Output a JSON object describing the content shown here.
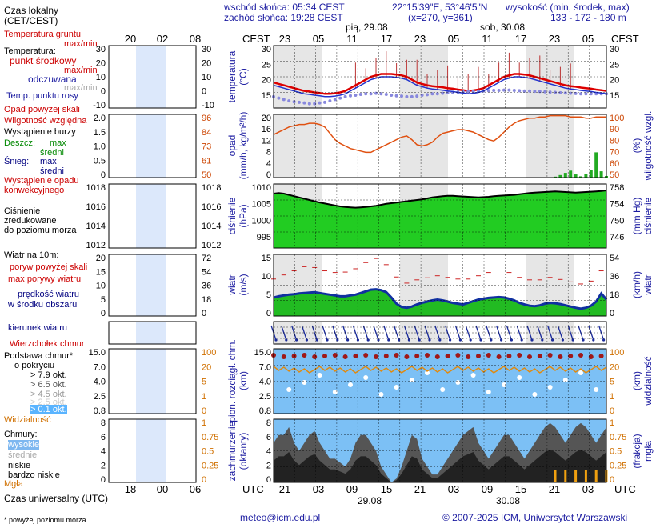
{
  "header": {
    "sunrise": "wschód słońca: 05:34 CEST",
    "sunset": "zachód słońca: 19:28 CEST",
    "coords": "22°15'39\"E, 53°46'5\"N",
    "grid": "(x=270, y=361)",
    "elevation_label": "wysokość (min, środek, max)",
    "elevation_values": "133 - 172 - 180 m"
  },
  "legend": {
    "local_time": "Czas lokalny",
    "local_time_sub": "(CET/CEST)",
    "ground_temp": "Temperatura gruntu",
    "ground_temp_sub": "max/min",
    "temperature": "Temperatura:",
    "mid_point": "punkt środkowy",
    "maxmin": "max/min",
    "felt": "odczuwana",
    "maxmin2": "max/min",
    "dew_point": "Temp. punktu rosy",
    "precip_above": "Opad powyżej skali",
    "humidity": "Wilgotność względna",
    "storm": "Wystąpienie burzy",
    "rain": "Deszcz:",
    "rain_max": "max",
    "rain_mid": "średni",
    "snow": "Śnieg:",
    "snow_max": "max",
    "snow_mid": "średni",
    "convective": "Wystąpienie opadu",
    "convective2": "konwekcyjnego",
    "pressure1": "Ciśnienie",
    "pressure2": "zredukowane",
    "pressure3": "do poziomu morza",
    "wind_title": "Wiatr na 10m:",
    "gusts_above": "poryw powyżej skali",
    "max_gusts": "max porywy wiatru",
    "wind_speed": "prędkość wiatru",
    "wind_speed2": "w środku obszaru",
    "wind_dir": "kierunek wiatru",
    "cloud_top": "Wierzchołek chmur",
    "cloud_base": "Podstawa chmur*",
    "cloud_base2": "o pokryciu",
    "okt_79": "> 7.9 okt.",
    "okt_65": "> 6.5 okt.",
    "okt_45": "> 4.5 okt.",
    "okt_25": "> 2.5 okt.",
    "okt_01": "> 0.1 okt.",
    "visibility": "Widzialność",
    "clouds": "Chmury:",
    "high": "wysokie",
    "medium": "średnie",
    "low": "niskie",
    "very_low": "bardzo niskie",
    "fog": "Mgła",
    "utc_label": "Czas uniwersalny (UTC)",
    "footnote": "* powyżej poziomu morza"
  },
  "legend_ticks": {
    "temp_left": [
      "30",
      "20",
      "10",
      "0",
      "-10"
    ],
    "temp_right": [
      "30",
      "20",
      "10",
      "0",
      "-10"
    ],
    "precip_left": [
      "2.0",
      "1.5",
      "1.0",
      "0.5",
      "0"
    ],
    "precip_right": [
      "96",
      "84",
      "73",
      "61",
      "50"
    ],
    "press_left": [
      "1018",
      "1016",
      "1014",
      "1012"
    ],
    "press_right": [
      "1018",
      "1016",
      "1014",
      "1012"
    ],
    "wind_left": [
      "20",
      "15",
      "10",
      "5",
      "0"
    ],
    "wind_right": [
      "72",
      "54",
      "36",
      "18",
      "0"
    ],
    "cloud_left": [
      "15.0",
      "7.0",
      "4.0",
      "2.5",
      "0.8"
    ],
    "cloud_right": [
      "100",
      "20",
      "5",
      "1",
      "0"
    ],
    "cover_left": [
      "8",
      "6",
      "4",
      "2",
      "0"
    ],
    "cover_right": [
      "1",
      "0.75",
      "0.5",
      "0.25",
      "0"
    ],
    "top_hours": [
      "20",
      "02",
      "08"
    ],
    "bottom_hours": [
      "18",
      "00",
      "06"
    ]
  },
  "main": {
    "cest": "CEST",
    "utc": "UTC",
    "day1": "pią, 29.08",
    "day2": "sob, 30.08",
    "date1": "29.08",
    "date2": "30.08",
    "top_hours": [
      "23",
      "05",
      "11",
      "17",
      "23",
      "05",
      "11",
      "17",
      "23",
      "05"
    ],
    "bottom_hours": [
      "21",
      "03",
      "09",
      "15",
      "21",
      "03",
      "09",
      "15",
      "21",
      "03"
    ],
    "temp_label1": "temperatura",
    "temp_label2": "(°C)",
    "precip_label1": "opad",
    "precip_label2": "(mm/h, kg/m²/h)",
    "humidity_label1": "wilgotność wzgl.",
    "humidity_label2": "(%)",
    "pressure_label1": "ciśnienie",
    "pressure_label2": "(hPa)",
    "pressure_label3": "ciśnienie",
    "pressure_label4": "(mm Hg)",
    "wind_label1": "wiatr",
    "wind_label2": "(m/s)",
    "wind_label3": "wiatr",
    "wind_label4": "(km/h)",
    "cloud_label1": "pion. rozciągł. chm.",
    "cloud_label2": "(km)",
    "vis_label1": "widzialność",
    "vis_label2": "(km)",
    "cover_label1": "zachmurzenie",
    "cover_label2": "(oktanty)",
    "fog_label1": "mgła",
    "fog_label2": "(frakcja)",
    "ticks": {
      "temp": [
        "30",
        "25",
        "20",
        "15"
      ],
      "precip": [
        "20",
        "16",
        "12",
        "8",
        "4",
        "0"
      ],
      "humidity": [
        "100",
        "90",
        "80",
        "70",
        "60",
        "50"
      ],
      "pressure": [
        "1010",
        "1005",
        "1000",
        "995"
      ],
      "pressure_mm": [
        "758",
        "754",
        "750",
        "746"
      ],
      "wind": [
        "15",
        "10",
        "5",
        "0"
      ],
      "wind_kmh": [
        "54",
        "36",
        "18",
        "0"
      ],
      "cloud": [
        "15.0",
        "7.0",
        "4.0",
        "2.5",
        "0.8"
      ],
      "vis": [
        "100",
        "20",
        "5",
        "1",
        "0"
      ],
      "cover": [
        "8",
        "6",
        "4",
        "2",
        "0"
      ],
      "fog": [
        "1",
        "0.75",
        "0.5",
        "0.25",
        "0"
      ]
    }
  },
  "footer": {
    "email": "meteo@icm.edu.pl",
    "copyright": "© 2007-2025 ICM, Uniwersytet Warszawski"
  },
  "chart_data": {
    "type": "line",
    "title": "",
    "time_step_hours": 1,
    "start_utc": "2025-08-28T18:00",
    "series": [
      {
        "name": "temperatura",
        "unit": "°C",
        "values": [
          20,
          19.5,
          19,
          18.5,
          18,
          17.5,
          17,
          16.8,
          16.5,
          16.3,
          16,
          16,
          16.2,
          16.5,
          17,
          18,
          19,
          20,
          21,
          22,
          22.5,
          23,
          23,
          23,
          22.8,
          22.5,
          22,
          21,
          20,
          19.5,
          19,
          18.7,
          18.5,
          18.3,
          18,
          17.8,
          17.5,
          17.3,
          17,
          17.2,
          17.5,
          18,
          19,
          20,
          21,
          22,
          22.5,
          23,
          23,
          22.8,
          22.5,
          22,
          21.5,
          21,
          20.5,
          20,
          19.5,
          19,
          18.7,
          18.5,
          18.2,
          18,
          17.8,
          17.5,
          17.3,
          17
        ]
      },
      {
        "name": "temperatura punktu rosy",
        "unit": "°C",
        "values": [
          15,
          14.5,
          14,
          13.5,
          13.2,
          13,
          12.8,
          12.5,
          12.5,
          12.8,
          13,
          13.5,
          14,
          14.5,
          15,
          15.3,
          15.5,
          15.8,
          16,
          16,
          16.2,
          16,
          15.8,
          15.5,
          15.3,
          15.2,
          15,
          15,
          15.2,
          15.5,
          15.7,
          16,
          16,
          16.2,
          16.4,
          16.5,
          16.6,
          16.7,
          16.8,
          16.9,
          17,
          17,
          17.1,
          17.2,
          17.2,
          17.3,
          17.3,
          17.2,
          17.1,
          17,
          17,
          16.9,
          16.8,
          16.7,
          16.6,
          16.5,
          16.4,
          16.3,
          16.2,
          16.1,
          16,
          16,
          16,
          16,
          16,
          16
        ]
      },
      {
        "name": "wilgotność względna",
        "unit": "%",
        "values": [
          84,
          86,
          88,
          90,
          91,
          92,
          92,
          93,
          93,
          92,
          90,
          85,
          80,
          77,
          75,
          73,
          72,
          71,
          70,
          70,
          72,
          74,
          76,
          78,
          80,
          82,
          83,
          80,
          76,
          75,
          76,
          78,
          82,
          85,
          86,
          87,
          88,
          88,
          87,
          86,
          84,
          82,
          80,
          79,
          82,
          86,
          90,
          93,
          95,
          96,
          97,
          97,
          98,
          98,
          99,
          99,
          99,
          99,
          98,
          98,
          98,
          97,
          97,
          98,
          98,
          98
        ]
      },
      {
        "name": "ciśnienie",
        "unit": "hPa",
        "values": [
          1009,
          1009.2,
          1009,
          1008.6,
          1008.2,
          1007.8,
          1007.4,
          1007,
          1006.6,
          1006.2,
          1005.9,
          1005.6,
          1005.3,
          1005,
          1004.8,
          1004.7,
          1004.6,
          1004.7,
          1004.8,
          1005,
          1005.2,
          1005.5,
          1005.8,
          1006,
          1006.2,
          1006.4,
          1006.6,
          1006.8,
          1007,
          1007.2,
          1007.5,
          1007.8,
          1008,
          1008.2,
          1008.3,
          1008.3,
          1008.2,
          1008.1,
          1008,
          1007.9,
          1007.8,
          1007.9,
          1008,
          1008.2,
          1008.3,
          1008.4,
          1008.5,
          1008.6,
          1008.8,
          1009,
          1009.2,
          1009.3,
          1009.4,
          1009.5,
          1009.6,
          1009.7,
          1009.6,
          1009.5,
          1009.4,
          1009.3,
          1009.4,
          1009.5,
          1009.6,
          1009.7,
          1009.8,
          1010
        ]
      },
      {
        "name": "prędkość wiatru",
        "unit": "m/s",
        "values": [
          4.5,
          4.8,
          5,
          5.2,
          5.3,
          5.5,
          5.6,
          5.7,
          5.8,
          5.6,
          5.4,
          5.2,
          5,
          4.8,
          4.8,
          5,
          5.2,
          5.6,
          6,
          6.4,
          6.5,
          6.3,
          5.8,
          4.5,
          3,
          2.2,
          2,
          2.3,
          2.8,
          3.2,
          3.5,
          3.8,
          4,
          3.8,
          3.5,
          3.2,
          3,
          2.8,
          3.2,
          3.6,
          4,
          4.2,
          4.4,
          4.5,
          4.6,
          4.5,
          4.2,
          3.8,
          3.2,
          2.8,
          2.5,
          2.4,
          2.6,
          3,
          3.2,
          3.1,
          2.9,
          2.6,
          2.3,
          2,
          1.8,
          2,
          2.5,
          3.5,
          5.5,
          4
        ]
      },
      {
        "name": "porywy wiatru",
        "unit": "m/s",
        "values": [
          9,
          9.5,
          10,
          10.5,
          11,
          11.5,
          12,
          12,
          11.8,
          11.5,
          11,
          10.8,
          10.6,
          10.5,
          10.7,
          11,
          11.5,
          12,
          13,
          13.8,
          14,
          13.5,
          12.5,
          11,
          9.5,
          8.5,
          8,
          8.3,
          8.8,
          9,
          9.3,
          9.5,
          9.8,
          9.6,
          9.4,
          9.2,
          9,
          8.8,
          9,
          9.4,
          9.8,
          10.2,
          10.6,
          11,
          11.2,
          11,
          10.6,
          10,
          9.4,
          9,
          8.8,
          8.6,
          8.8,
          9.2,
          9.4,
          9.2,
          8.9,
          8.6,
          8.3,
          8,
          7.8,
          8,
          8.5,
          9.5,
          11,
          10
        ]
      },
      {
        "name": "opad",
        "unit": "mm/h",
        "values": [
          0,
          0,
          0,
          0,
          0,
          0,
          0,
          0,
          0,
          0,
          0,
          0,
          0,
          0,
          0,
          0,
          0,
          0,
          0,
          0,
          0,
          0,
          0,
          0,
          0,
          0,
          0,
          0,
          0,
          0,
          0,
          0,
          0,
          0,
          0,
          0,
          0,
          0,
          0,
          0,
          0,
          0,
          0,
          0,
          0,
          0,
          0,
          0,
          0,
          0,
          0,
          0,
          0,
          0,
          0,
          0.3,
          0.8,
          1.5,
          2.2,
          1.0,
          0.4,
          1.2,
          2.5,
          8.0,
          2.0,
          0.5
        ]
      },
      {
        "name": "zachmurzenie",
        "unit": "okt",
        "values": [
          5,
          6,
          6,
          7,
          5,
          4,
          5,
          6,
          6.5,
          5,
          4,
          3,
          3,
          2.5,
          2,
          3,
          5,
          6,
          6,
          5,
          4,
          2,
          1,
          0,
          0.5,
          2,
          4,
          6,
          5.5,
          3,
          2,
          1,
          1,
          2,
          3,
          4,
          5,
          6,
          6.5,
          7,
          5,
          4,
          3,
          4,
          5,
          6,
          6,
          5,
          4,
          3,
          4,
          5,
          6,
          7,
          7.5,
          7,
          6,
          5,
          6,
          7,
          7.5,
          7,
          6,
          5,
          6,
          7
        ]
      }
    ],
    "ylim": {
      "temperature": [
        11,
        33
      ],
      "precip": [
        0,
        20
      ],
      "humidity": [
        50,
        100
      ],
      "pressure": [
        992,
        1012
      ],
      "wind": [
        0,
        15
      ],
      "cover": [
        0,
        8
      ]
    }
  }
}
